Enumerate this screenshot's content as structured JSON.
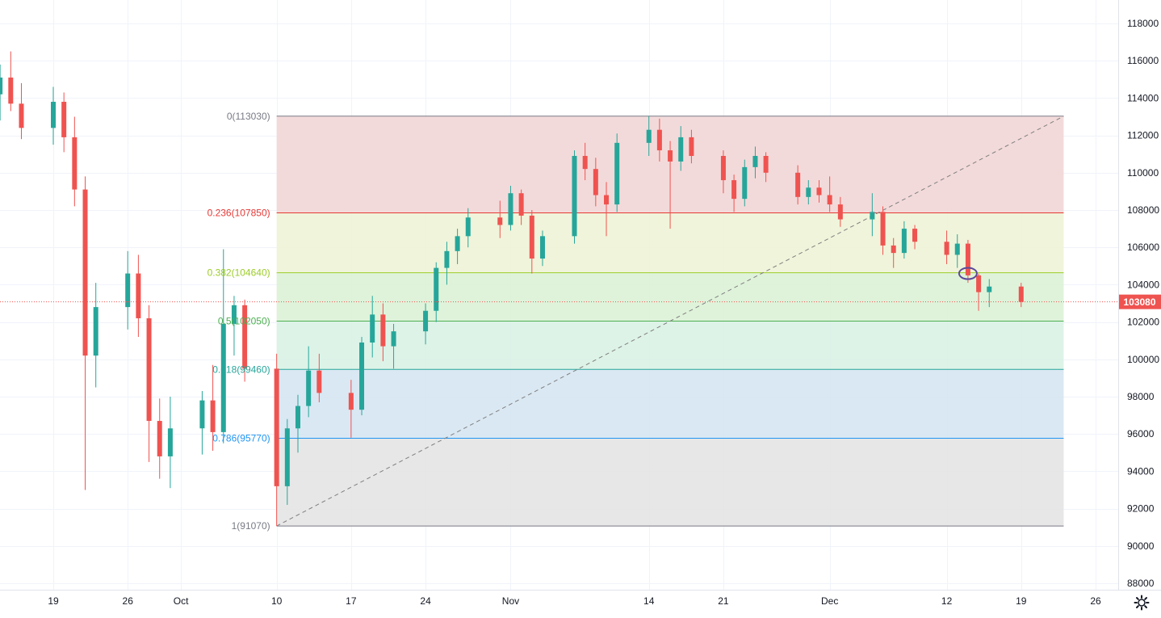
{
  "colors": {
    "candle_up": "#26a69a",
    "candle_down": "#ef5350",
    "wick": "#787b86",
    "grid": "#f0f3fa",
    "axis_text": "#131722",
    "price_tag_bg": "#ef5350",
    "price_tag_text": "#ffffff",
    "trend_line": "#7f7f7f",
    "annotation_ellipse": "#5b4a9c"
  },
  "settings_icon": "gear-icon",
  "chart_data": {
    "type": "candlestick",
    "y_axis": {
      "ticks": [
        "88000",
        "90000",
        "92000",
        "94000",
        "96000",
        "98000",
        "100000",
        "102000",
        "104000",
        "106000",
        "108000",
        "110000",
        "112000",
        "114000",
        "116000",
        "118000"
      ],
      "range": [
        87300,
        119000
      ],
      "position": "right"
    },
    "x_axis": {
      "ticks": [
        "19",
        "26",
        "Oct",
        "10",
        "17",
        "24",
        "Nov",
        "14",
        "21",
        "Dec",
        "12",
        "19",
        "26"
      ],
      "range": [
        "Sep 12",
        "Dec 31"
      ]
    },
    "grid": true,
    "last_price": {
      "value": 103080,
      "label": "103080"
    },
    "fibonacci_retracement": {
      "start_price": 91070,
      "end_price": 113030,
      "start_date": "Oct 10",
      "end_date": "Dec 23",
      "levels": [
        {
          "label": "0(113030)",
          "ratio": 0,
          "price": 113030,
          "line_color": "#787b86",
          "fill": "#f2d6d6"
        },
        {
          "label": "0.236(107850)",
          "ratio": 0.236,
          "price": 107850,
          "line_color": "#e53935",
          "fill": "#eef3d6"
        },
        {
          "label": "0.382(104640)",
          "ratio": 0.382,
          "price": 104640,
          "line_color": "#9ccc28",
          "fill": "#dcf2d6"
        },
        {
          "label": "0.5(102050)",
          "ratio": 0.5,
          "price": 102050,
          "line_color": "#4caf50",
          "fill": "#d9f2e6"
        },
        {
          "label": "0.618(99460)",
          "ratio": 0.618,
          "price": 99460,
          "line_color": "#26a69a",
          "fill": "#d6e6f2"
        },
        {
          "label": "0.786(95770)",
          "ratio": 0.786,
          "price": 95770,
          "line_color": "#2196f3",
          "fill": "#e4e4e4"
        },
        {
          "label": "1(91070)",
          "ratio": 1,
          "price": 91070,
          "line_color": "#787b86",
          "fill": "none"
        }
      ]
    },
    "trend_line": {
      "from": {
        "date": "Oct 10",
        "price": 91070
      },
      "to": {
        "date": "Dec 23",
        "price": 113030
      },
      "style": "dashed"
    },
    "annotation": {
      "type": "ellipse",
      "date": "Dec 14",
      "price": 104600
    },
    "series": [
      {
        "date": "Sep 12",
        "open": 116900,
        "high": 117300,
        "low": 115000,
        "close": 115300
      },
      {
        "date": "Sep 13",
        "open": 115300,
        "high": 116700,
        "low": 114000,
        "close": 114200
      },
      {
        "date": "Sep 14",
        "open": 114200,
        "high": 115800,
        "low": 112800,
        "close": 115100
      },
      {
        "date": "Sep 15",
        "open": 115100,
        "high": 116500,
        "low": 113300,
        "close": 113700
      },
      {
        "date": "Sep 16",
        "open": 113700,
        "high": 114800,
        "low": 111800,
        "close": 112400
      },
      {
        "date": "Sep 19",
        "open": 112400,
        "high": 114600,
        "low": 111500,
        "close": 113800
      },
      {
        "date": "Sep 20",
        "open": 113800,
        "high": 114300,
        "low": 111100,
        "close": 111900
      },
      {
        "date": "Sep 21",
        "open": 111900,
        "high": 113000,
        "low": 108200,
        "close": 109100
      },
      {
        "date": "Sep 22",
        "open": 109100,
        "high": 109800,
        "low": 93000,
        "close": 100200
      },
      {
        "date": "Sep 23",
        "open": 100200,
        "high": 104100,
        "low": 98500,
        "close": 102800
      },
      {
        "date": "Sep 26",
        "open": 102800,
        "high": 105800,
        "low": 101600,
        "close": 104600
      },
      {
        "date": "Sep 27",
        "open": 104600,
        "high": 105600,
        "low": 101200,
        "close": 102200
      },
      {
        "date": "Sep 28",
        "open": 102200,
        "high": 102900,
        "low": 94500,
        "close": 96700
      },
      {
        "date": "Sep 29",
        "open": 96700,
        "high": 97900,
        "low": 93600,
        "close": 94800
      },
      {
        "date": "Sep 30",
        "open": 94800,
        "high": 98000,
        "low": 93100,
        "close": 96300
      },
      {
        "date": "Oct 3",
        "open": 96300,
        "high": 98300,
        "low": 94900,
        "close": 97800
      },
      {
        "date": "Oct 4",
        "open": 97800,
        "high": 99700,
        "low": 95100,
        "close": 96100
      },
      {
        "date": "Oct 5",
        "open": 96100,
        "high": 105900,
        "low": 95500,
        "close": 101900
      },
      {
        "date": "Oct 6",
        "open": 101900,
        "high": 103400,
        "low": 100200,
        "close": 102900
      },
      {
        "date": "Oct 7",
        "open": 102900,
        "high": 103200,
        "low": 98800,
        "close": 99500
      },
      {
        "date": "Oct 10",
        "open": 99500,
        "high": 100300,
        "low": 91070,
        "close": 93200
      },
      {
        "date": "Oct 11",
        "open": 93200,
        "high": 96800,
        "low": 92200,
        "close": 96300
      },
      {
        "date": "Oct 12",
        "open": 96300,
        "high": 98100,
        "low": 95000,
        "close": 97500
      },
      {
        "date": "Oct 13",
        "open": 97500,
        "high": 100700,
        "low": 96900,
        "close": 99400
      },
      {
        "date": "Oct 14",
        "open": 99400,
        "high": 100300,
        "low": 97700,
        "close": 98200
      },
      {
        "date": "Oct 17",
        "open": 98200,
        "high": 98900,
        "low": 95800,
        "close": 97300
      },
      {
        "date": "Oct 18",
        "open": 97300,
        "high": 101200,
        "low": 97000,
        "close": 100900
      },
      {
        "date": "Oct 19",
        "open": 100900,
        "high": 103400,
        "low": 100100,
        "close": 102400
      },
      {
        "date": "Oct 20",
        "open": 102400,
        "high": 103000,
        "low": 99900,
        "close": 100700
      },
      {
        "date": "Oct 21",
        "open": 100700,
        "high": 101900,
        "low": 99500,
        "close": 101500
      },
      {
        "date": "Oct 24",
        "open": 101500,
        "high": 103000,
        "low": 100800,
        "close": 102600
      },
      {
        "date": "Oct 25",
        "open": 102600,
        "high": 105200,
        "low": 102000,
        "close": 104900
      },
      {
        "date": "Oct 26",
        "open": 104900,
        "high": 106300,
        "low": 104000,
        "close": 105800
      },
      {
        "date": "Oct 27",
        "open": 105800,
        "high": 107000,
        "low": 105100,
        "close": 106600
      },
      {
        "date": "Oct 28",
        "open": 106600,
        "high": 108100,
        "low": 106000,
        "close": 107600
      },
      {
        "date": "Oct 31",
        "open": 107600,
        "high": 108500,
        "low": 106500,
        "close": 107200
      },
      {
        "date": "Nov 1",
        "open": 107200,
        "high": 109300,
        "low": 106900,
        "close": 108900
      },
      {
        "date": "Nov 2",
        "open": 108900,
        "high": 109100,
        "low": 107200,
        "close": 107700
      },
      {
        "date": "Nov 3",
        "open": 107700,
        "high": 108000,
        "low": 104600,
        "close": 105400
      },
      {
        "date": "Nov 4",
        "open": 105400,
        "high": 106900,
        "low": 105000,
        "close": 106600
      },
      {
        "date": "Nov 7",
        "open": 106600,
        "high": 111200,
        "low": 106200,
        "close": 110900
      },
      {
        "date": "Nov 8",
        "open": 110900,
        "high": 111600,
        "low": 109600,
        "close": 110200
      },
      {
        "date": "Nov 9",
        "open": 110200,
        "high": 110800,
        "low": 108200,
        "close": 108800
      },
      {
        "date": "Nov 10",
        "open": 108800,
        "high": 109500,
        "low": 106600,
        "close": 108300
      },
      {
        "date": "Nov 11",
        "open": 108300,
        "high": 112100,
        "low": 107900,
        "close": 111600
      },
      {
        "date": "Nov 14",
        "open": 111600,
        "high": 113030,
        "low": 110900,
        "close": 112300
      },
      {
        "date": "Nov 15",
        "open": 112300,
        "high": 112900,
        "low": 110600,
        "close": 111200
      },
      {
        "date": "Nov 16",
        "open": 111200,
        "high": 111700,
        "low": 107000,
        "close": 110600
      },
      {
        "date": "Nov 17",
        "open": 110600,
        "high": 112500,
        "low": 110100,
        "close": 111900
      },
      {
        "date": "Nov 18",
        "open": 111900,
        "high": 112300,
        "low": 110500,
        "close": 110900
      },
      {
        "date": "Nov 21",
        "open": 110900,
        "high": 111200,
        "low": 108900,
        "close": 109600
      },
      {
        "date": "Nov 22",
        "open": 109600,
        "high": 109900,
        "low": 107900,
        "close": 108600
      },
      {
        "date": "Nov 23",
        "open": 108600,
        "high": 110700,
        "low": 108200,
        "close": 110300
      },
      {
        "date": "Nov 24",
        "open": 110300,
        "high": 111400,
        "low": 109700,
        "close": 110900
      },
      {
        "date": "Nov 25",
        "open": 110900,
        "high": 111100,
        "low": 109500,
        "close": 110000
      },
      {
        "date": "Nov 28",
        "open": 110000,
        "high": 110400,
        "low": 108300,
        "close": 108700
      },
      {
        "date": "Nov 29",
        "open": 108700,
        "high": 109600,
        "low": 108300,
        "close": 109200
      },
      {
        "date": "Nov 30",
        "open": 109200,
        "high": 109600,
        "low": 108400,
        "close": 108800
      },
      {
        "date": "Dec 1",
        "open": 108800,
        "high": 109800,
        "low": 107900,
        "close": 108300
      },
      {
        "date": "Dec 2",
        "open": 108300,
        "high": 108700,
        "low": 107100,
        "close": 107500
      },
      {
        "date": "Dec 5",
        "open": 107500,
        "high": 108900,
        "low": 106600,
        "close": 107900
      },
      {
        "date": "Dec 6",
        "open": 107900,
        "high": 108200,
        "low": 105600,
        "close": 106100
      },
      {
        "date": "Dec 7",
        "open": 106100,
        "high": 106500,
        "low": 104900,
        "close": 105700
      },
      {
        "date": "Dec 8",
        "open": 105700,
        "high": 107400,
        "low": 105400,
        "close": 107000
      },
      {
        "date": "Dec 9",
        "open": 107000,
        "high": 107200,
        "low": 105900,
        "close": 106300
      },
      {
        "date": "Dec 12",
        "open": 106300,
        "high": 106900,
        "low": 105100,
        "close": 105600
      },
      {
        "date": "Dec 13",
        "open": 105600,
        "high": 106700,
        "low": 104900,
        "close": 106200
      },
      {
        "date": "Dec 14",
        "open": 106200,
        "high": 106400,
        "low": 104100,
        "close": 104500
      },
      {
        "date": "Dec 15",
        "open": 104500,
        "high": 104600,
        "low": 102600,
        "close": 103600
      },
      {
        "date": "Dec 16",
        "open": 103600,
        "high": 104300,
        "low": 102800,
        "close": 103900
      },
      {
        "date": "Dec 19",
        "open": 103900,
        "high": 104100,
        "low": 102800,
        "close": 103080
      }
    ]
  }
}
